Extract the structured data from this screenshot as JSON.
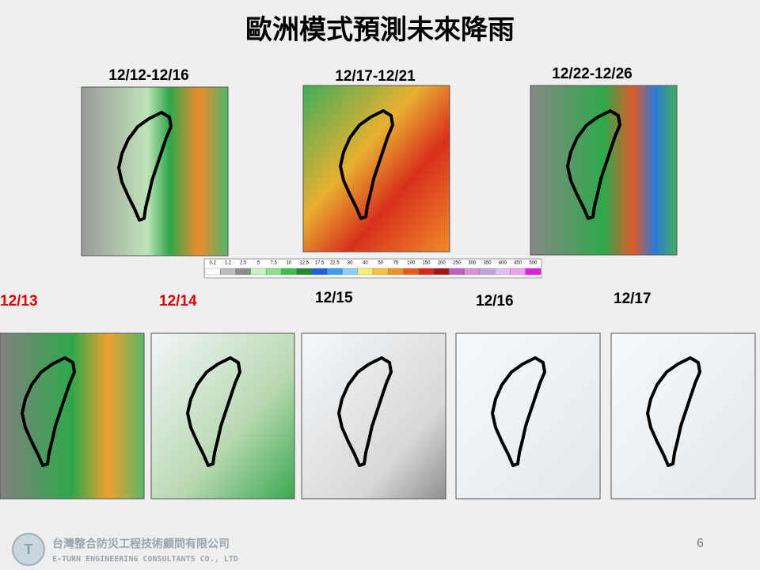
{
  "title": "歐洲模式預測未來降雨",
  "periods": [
    "12/12-12/16",
    "12/17-12/21",
    "12/22-12/26"
  ],
  "colorbar": {
    "ticks": [
      "0.2",
      "1.2",
      "2.5",
      "5",
      "7.5",
      "10",
      "12.5",
      "17.5",
      "22.5",
      "30",
      "40",
      "50",
      "75",
      "100",
      "150",
      "200",
      "250",
      "300",
      "350",
      "400",
      "450",
      "500"
    ]
  },
  "days": [
    "12/13",
    "12/14",
    "12/15",
    "12/16",
    "12/17"
  ],
  "page_number": "6",
  "footer": {
    "company_zh": "台灣整合防災工程技術顧問有限公司",
    "company_en": "E-TURN ENGINEERING CONSULTANTS CO., LTD"
  }
}
